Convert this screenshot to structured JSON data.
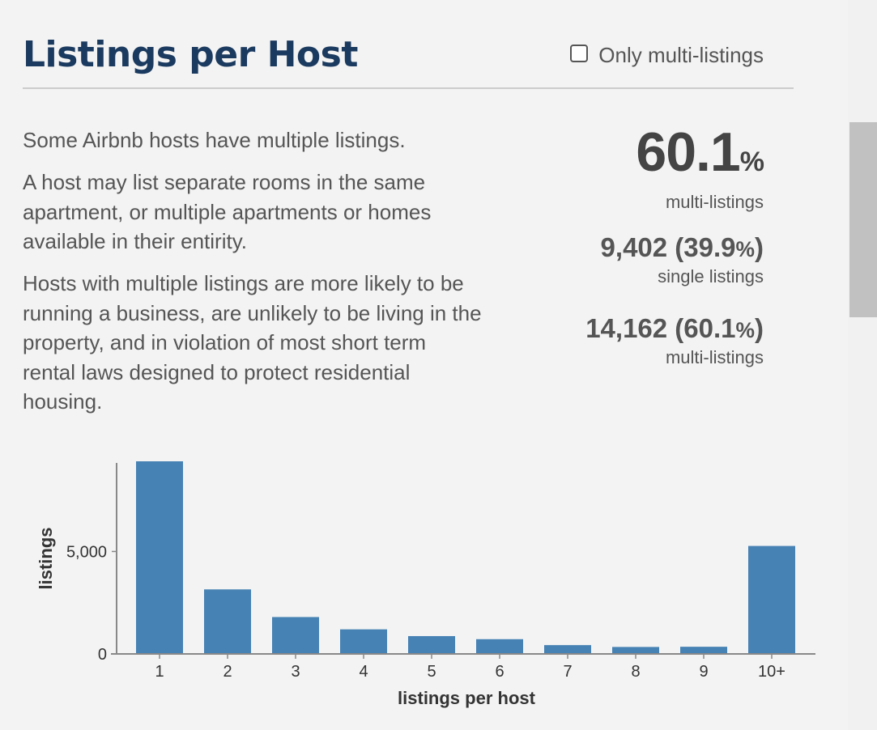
{
  "header": {
    "title": "Listings per Host",
    "toggle_label": "Only multi-listings"
  },
  "description": [
    "Some Airbnb hosts have multiple listings.",
    "A host may list separate rooms in the same apartment, or multiple apartments or homes available in their entirity.",
    "Hosts with multiple listings are more likely to be running a business, are unlikely to be living in the property, and in violation of most short term rental laws designed to protect residential housing."
  ],
  "stats": {
    "headline_value": "60.1",
    "headline_unit": "%",
    "headline_label": "multi-listings",
    "single_count": "9,402",
    "single_pct_open": " (39.9",
    "single_pct_unit": "%",
    "single_pct_close": ")",
    "single_label": "single listings",
    "multi_count": "14,162",
    "multi_pct_open": " (60.1",
    "multi_pct_unit": "%",
    "multi_pct_close": ")",
    "multi_label": "multi-listings"
  },
  "chart_data": {
    "type": "bar",
    "categories": [
      "1",
      "2",
      "3",
      "4",
      "5",
      "6",
      "7",
      "8",
      "9",
      "10+"
    ],
    "values": [
      9402,
      3150,
      1800,
      1200,
      870,
      720,
      430,
      340,
      350,
      5270
    ],
    "xlabel": "listings per host",
    "ylabel": "listings",
    "yticks": [
      0,
      5000
    ],
    "ytick_labels": [
      "0",
      "5,000"
    ],
    "ylim": [
      0,
      9402
    ],
    "bar_color": "#4682b4",
    "grid": false
  },
  "colors": {
    "title": "#1b3a5f",
    "text": "#555555",
    "background": "#f3f3f3"
  }
}
